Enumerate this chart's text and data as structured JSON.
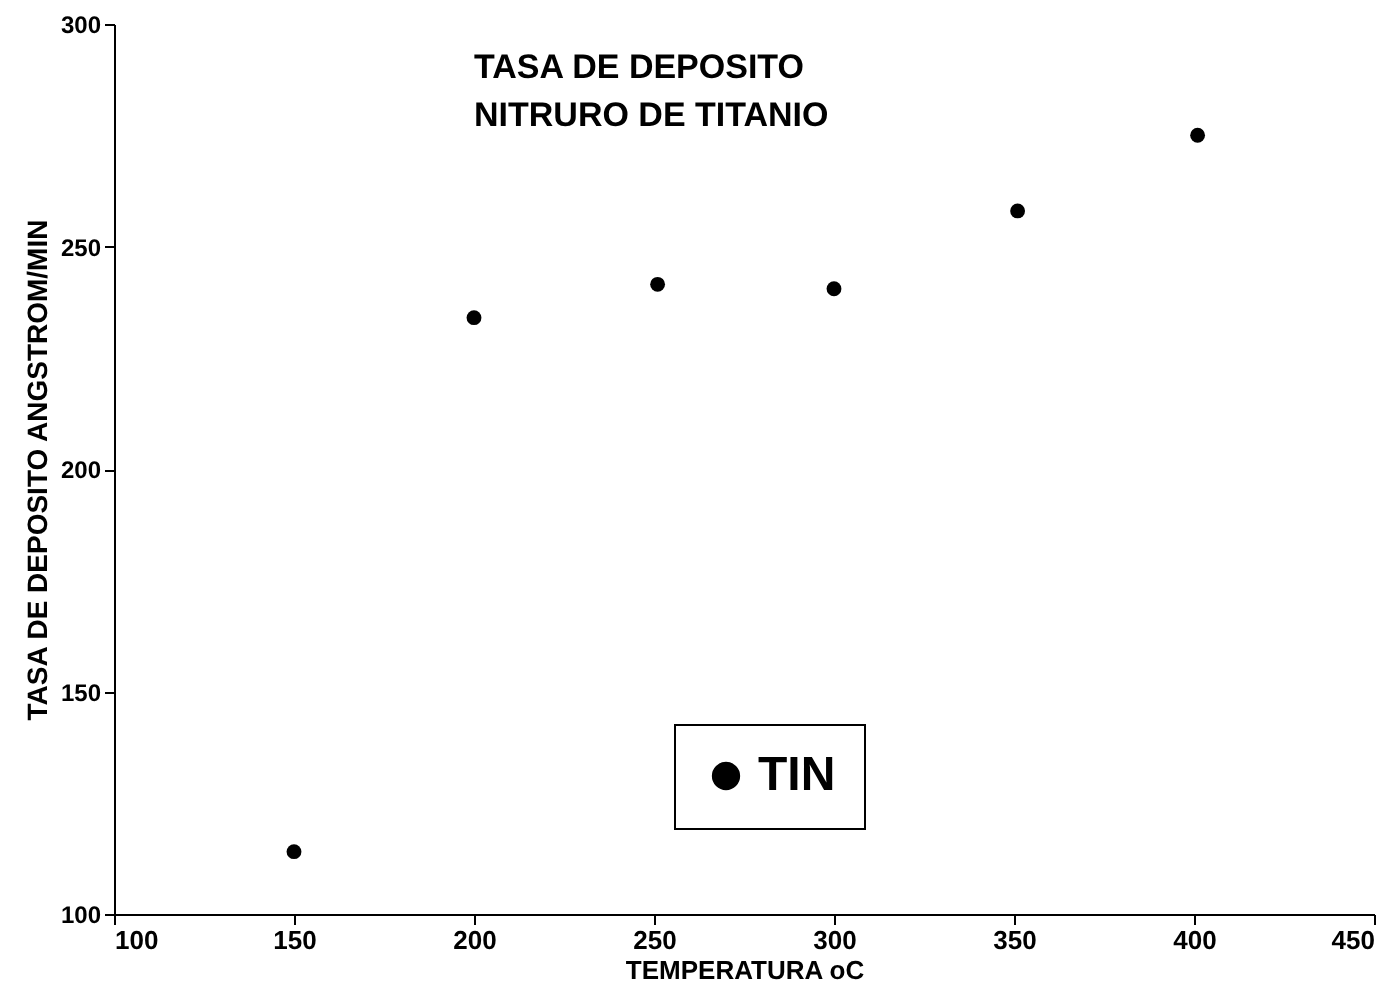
{
  "chart_data": {
    "type": "scatter",
    "title": "TASA DE DEPOSITO",
    "subtitle": "NITRURO DE TITANIO",
    "xlabel": "TEMPERATURA oC",
    "ylabel": "TASA  DE DEPOSITO ANGSTROM/MIN",
    "x": [
      150,
      200,
      251,
      300,
      351,
      401
    ],
    "series": [
      {
        "name": "TIN",
        "color": "#000000",
        "values": [
          114,
          234,
          241.5,
          240.5,
          258,
          275
        ]
      }
    ],
    "xlim": [
      100,
      450
    ],
    "xticks": [
      100,
      150,
      200,
      250,
      300,
      350,
      400,
      450
    ],
    "ylim": [
      100,
      300
    ],
    "yticks": [
      100,
      150,
      200,
      250,
      300
    ],
    "marker": "circle",
    "legend": "bottom",
    "grid": false
  }
}
